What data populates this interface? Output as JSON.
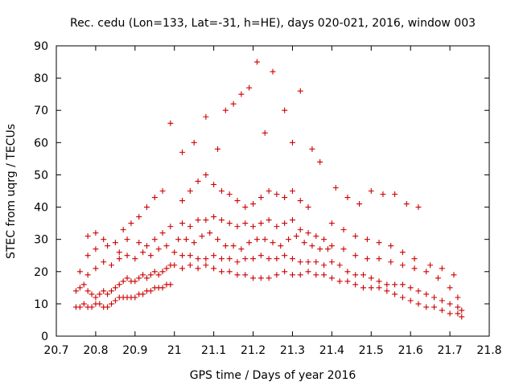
{
  "chart_data": {
    "type": "scatter",
    "title": "Rec. cedu (Lon=133, Lat=-31, h=HE), days 020-021, 2016, window 003",
    "xlabel": "GPS time / Days of year 2016",
    "ylabel": "STEC from uqrg / TECUs",
    "xlim": [
      20.7,
      21.8
    ],
    "ylim": [
      0,
      90
    ],
    "grid": false,
    "legend": "none",
    "marker": "plus",
    "marker_color": "#cc0000",
    "xticks": [
      "20.7",
      "20.8",
      "20.9",
      "21",
      "21.1",
      "21.2",
      "21.3",
      "21.4",
      "21.5",
      "21.6",
      "21.7",
      "21.8"
    ],
    "yticks": [
      "0",
      "10",
      "20",
      "30",
      "40",
      "50",
      "60",
      "70",
      "80",
      "90"
    ],
    "x": [
      20.75,
      20.76,
      20.77,
      20.78,
      20.79,
      20.8,
      20.81,
      20.82,
      20.83,
      20.84,
      20.85,
      20.86,
      20.87,
      20.88,
      20.89,
      20.9,
      20.91,
      20.92,
      20.93,
      20.94,
      20.95,
      20.96,
      20.97,
      20.98,
      20.99,
      20.75,
      20.76,
      20.77,
      20.78,
      20.79,
      20.8,
      20.81,
      20.82,
      20.83,
      20.84,
      20.85,
      20.86,
      20.87,
      20.88,
      20.89,
      20.9,
      20.91,
      20.92,
      20.93,
      20.94,
      20.95,
      20.96,
      20.97,
      20.98,
      20.99,
      20.76,
      20.78,
      20.8,
      20.82,
      20.84,
      20.86,
      20.88,
      20.9,
      20.92,
      20.94,
      20.96,
      20.98,
      20.78,
      20.8,
      20.82,
      20.85,
      20.87,
      20.89,
      20.91,
      20.93,
      20.95,
      20.97,
      20.78,
      20.8,
      20.83,
      20.86,
      20.88,
      20.91,
      20.93,
      20.95,
      20.97,
      20.99,
      21.0,
      21.02,
      21.04,
      21.06,
      21.08,
      21.1,
      21.12,
      21.14,
      21.16,
      21.18,
      21.2,
      21.22,
      21.24,
      21.26,
      21.28,
      21.3,
      21.32,
      21.34,
      21.36,
      21.38,
      21.0,
      21.02,
      21.04,
      21.06,
      21.08,
      21.1,
      21.12,
      21.14,
      21.16,
      21.18,
      21.2,
      21.22,
      21.24,
      21.26,
      21.28,
      21.3,
      21.32,
      21.34,
      21.36,
      21.38,
      21.01,
      21.03,
      21.05,
      21.07,
      21.09,
      21.11,
      21.13,
      21.15,
      21.17,
      21.19,
      21.21,
      21.23,
      21.25,
      21.27,
      21.29,
      21.31,
      21.33,
      21.35,
      21.37,
      21.39,
      21.02,
      21.04,
      21.06,
      21.08,
      21.1,
      21.12,
      21.14,
      21.16,
      21.18,
      21.2,
      21.22,
      21.24,
      21.26,
      21.28,
      21.3,
      21.32,
      21.34,
      21.36,
      21.38,
      21.02,
      21.04,
      21.06,
      21.08,
      21.1,
      21.12,
      21.14,
      21.16,
      21.18,
      21.2,
      21.22,
      21.24,
      21.26,
      21.28,
      21.3,
      21.32,
      21.34,
      20.99,
      21.02,
      21.05,
      21.08,
      21.11,
      21.13,
      21.15,
      21.17,
      21.19,
      21.21,
      21.23,
      21.25,
      21.28,
      21.3,
      21.32,
      21.35,
      21.37,
      21.4,
      21.42,
      21.44,
      21.46,
      21.48,
      21.5,
      21.52,
      21.54,
      21.56,
      21.58,
      21.6,
      21.62,
      21.64,
      21.66,
      21.68,
      21.7,
      21.72,
      21.73,
      21.4,
      21.42,
      21.44,
      21.46,
      21.48,
      21.5,
      21.52,
      21.54,
      21.56,
      21.58,
      21.6,
      21.62,
      21.64,
      21.66,
      21.68,
      21.7,
      21.72,
      21.73,
      21.4,
      21.43,
      21.46,
      21.49,
      21.52,
      21.55,
      21.58,
      21.61,
      21.64,
      21.67,
      21.7,
      21.72,
      21.4,
      21.43,
      21.46,
      21.49,
      21.52,
      21.55,
      21.58,
      21.61,
      21.65,
      21.68,
      21.71,
      21.41,
      21.44,
      21.47,
      21.5,
      21.53,
      21.56,
      21.59,
      21.62
    ],
    "y": [
      9,
      9,
      10,
      9,
      9,
      10,
      10,
      9,
      9,
      10,
      11,
      12,
      12,
      12,
      12,
      12,
      13,
      13,
      14,
      14,
      15,
      15,
      15,
      16,
      16,
      14,
      15,
      16,
      14,
      13,
      12,
      13,
      14,
      13,
      14,
      15,
      16,
      17,
      18,
      17,
      17,
      18,
      19,
      18,
      19,
      20,
      19,
      20,
      21,
      22,
      20,
      19,
      21,
      23,
      22,
      24,
      25,
      24,
      26,
      25,
      27,
      28,
      31,
      32,
      30,
      29,
      33,
      35,
      37,
      40,
      43,
      45,
      25,
      27,
      28,
      26,
      30,
      29,
      28,
      30,
      32,
      34,
      22,
      21,
      22,
      21,
      22,
      21,
      20,
      20,
      19,
      19,
      18,
      18,
      18,
      19,
      20,
      19,
      19,
      20,
      19,
      19,
      26,
      25,
      25,
      24,
      24,
      25,
      24,
      24,
      23,
      24,
      24,
      25,
      24,
      24,
      25,
      24,
      23,
      23,
      23,
      22,
      30,
      30,
      29,
      31,
      32,
      30,
      28,
      28,
      27,
      29,
      30,
      30,
      29,
      28,
      30,
      31,
      29,
      28,
      27,
      27,
      35,
      34,
      36,
      36,
      37,
      36,
      35,
      34,
      35,
      34,
      35,
      36,
      34,
      35,
      36,
      33,
      32,
      31,
      30,
      42,
      45,
      48,
      50,
      47,
      45,
      44,
      42,
      40,
      41,
      43,
      45,
      44,
      43,
      45,
      42,
      40,
      66,
      57,
      60,
      68,
      58,
      70,
      72,
      75,
      77,
      85,
      63,
      82,
      70,
      60,
      76,
      58,
      54,
      18,
      17,
      17,
      16,
      15,
      15,
      15,
      14,
      13,
      12,
      11,
      10,
      9,
      9,
      8,
      7,
      7,
      6,
      23,
      22,
      20,
      19,
      19,
      18,
      17,
      16,
      16,
      16,
      15,
      14,
      13,
      12,
      11,
      10,
      9,
      8,
      28,
      27,
      25,
      24,
      24,
      23,
      22,
      21,
      20,
      18,
      15,
      12,
      35,
      33,
      31,
      30,
      29,
      28,
      26,
      24,
      22,
      21,
      19,
      46,
      43,
      41,
      45,
      44,
      44,
      41,
      40
    ]
  }
}
